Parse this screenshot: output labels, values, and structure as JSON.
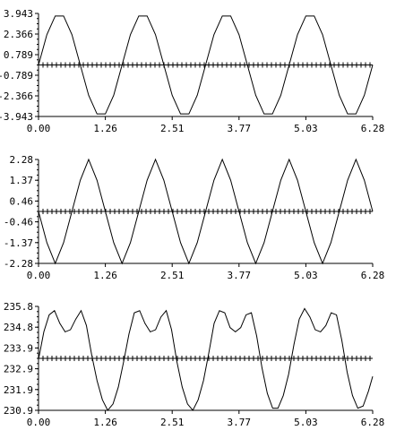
{
  "chart_data": [
    {
      "type": "line",
      "xlim": [
        0,
        6.28
      ],
      "ylim": [
        -3.943,
        3.943
      ],
      "x_ticks": [
        "0.00",
        "1.26",
        "2.51",
        "3.77",
        "5.03",
        "6.28"
      ],
      "y_ticks": [
        "3.943",
        "2.366",
        "0.789",
        "-0.789",
        "-2.366",
        "-3.943"
      ],
      "series": [
        {
          "x": [
            0,
            0.157,
            0.314,
            0.471,
            0.628,
            0.785,
            0.942,
            1.099,
            1.256,
            1.413,
            1.57,
            1.727,
            1.884,
            2.041,
            2.198,
            2.355,
            2.512,
            2.669,
            2.826,
            2.983,
            3.14,
            3.297,
            3.454,
            3.611,
            3.768,
            3.925,
            4.082,
            4.239,
            4.396,
            4.553,
            4.71,
            4.867,
            5.024,
            5.181,
            5.338,
            5.495,
            5.652,
            5.809,
            5.966,
            6.123,
            6.28
          ],
          "y": [
            0,
            2.32,
            3.75,
            3.75,
            2.32,
            0,
            -2.32,
            -3.75,
            -3.75,
            -2.32,
            0,
            2.32,
            3.75,
            3.75,
            2.32,
            0,
            -2.32,
            -3.75,
            -3.75,
            -2.32,
            0,
            2.32,
            3.75,
            3.75,
            2.32,
            0,
            -2.32,
            -3.75,
            -3.75,
            -2.32,
            0,
            2.32,
            3.75,
            3.75,
            2.32,
            0,
            -2.32,
            -3.75,
            -3.75,
            -2.32,
            0
          ]
        }
      ]
    },
    {
      "type": "line",
      "xlim": [
        0,
        6.28
      ],
      "ylim": [
        -2.28,
        2.28
      ],
      "x_ticks": [
        "0.00",
        "1.26",
        "2.51",
        "3.77",
        "5.03",
        "6.28"
      ],
      "y_ticks": [
        "2.28",
        "1.37",
        "0.46",
        "-0.46",
        "-1.37",
        "-2.28"
      ],
      "series": [
        {
          "x": [
            0,
            0.157,
            0.314,
            0.471,
            0.628,
            0.785,
            0.942,
            1.099,
            1.256,
            1.413,
            1.57,
            1.727,
            1.884,
            2.041,
            2.198,
            2.355,
            2.512,
            2.669,
            2.826,
            2.983,
            3.14,
            3.297,
            3.454,
            3.611,
            3.768,
            3.925,
            4.082,
            4.239,
            4.396,
            4.553,
            4.71,
            4.867,
            5.024,
            5.181,
            5.338,
            5.495,
            5.652,
            5.809,
            5.966,
            6.123,
            6.28
          ],
          "y": [
            0,
            -1.37,
            -2.28,
            -1.37,
            0,
            1.37,
            2.28,
            1.37,
            0,
            -1.37,
            -2.28,
            -1.37,
            0,
            1.37,
            2.28,
            1.37,
            0,
            -1.37,
            -2.28,
            -1.37,
            0,
            1.37,
            2.28,
            1.37,
            0,
            -1.37,
            -2.28,
            -1.37,
            0,
            1.37,
            2.28,
            1.37,
            0,
            -1.37,
            -2.28,
            -1.37,
            0,
            1.37,
            2.28,
            1.37,
            0
          ]
        }
      ]
    },
    {
      "type": "line",
      "xlim": [
        0,
        6.28
      ],
      "ylim": [
        230.9,
        235.8
      ],
      "x_ticks": [
        "0.00",
        "1.26",
        "2.51",
        "3.77",
        "5.03",
        "6.28"
      ],
      "y_ticks": [
        "235.8",
        "234.8",
        "233.9",
        "232.9",
        "231.9",
        "230.9"
      ],
      "series": [
        {
          "x": [
            0,
            0.1,
            0.2,
            0.3,
            0.4,
            0.5,
            0.6,
            0.7,
            0.8,
            0.9,
            1.0,
            1.1,
            1.2,
            1.3,
            1.4,
            1.5,
            1.6,
            1.7,
            1.8,
            1.9,
            2.0,
            2.1,
            2.2,
            2.3,
            2.4,
            2.5,
            2.6,
            2.7,
            2.8,
            2.9,
            3.0,
            3.1,
            3.2,
            3.3,
            3.4,
            3.5,
            3.6,
            3.7,
            3.8,
            3.9,
            4.0,
            4.1,
            4.2,
            4.3,
            4.4,
            4.5,
            4.6,
            4.7,
            4.8,
            4.9,
            5.0,
            5.1,
            5.2,
            5.3,
            5.4,
            5.5,
            5.6,
            5.7,
            5.8,
            5.9,
            6.0,
            6.1,
            6.2,
            6.28
          ],
          "y": [
            233.3,
            234.6,
            235.4,
            235.6,
            235.0,
            234.6,
            234.7,
            235.2,
            235.6,
            234.9,
            233.5,
            232.3,
            231.4,
            230.9,
            231.2,
            232.0,
            233.2,
            234.5,
            235.5,
            235.6,
            235.0,
            234.6,
            234.7,
            235.3,
            235.6,
            234.7,
            233.2,
            232.0,
            231.2,
            230.9,
            231.4,
            232.3,
            233.6,
            235.0,
            235.6,
            235.5,
            234.8,
            234.6,
            234.8,
            235.4,
            235.5,
            234.4,
            232.9,
            231.7,
            231.0,
            231.0,
            231.6,
            232.6,
            234.0,
            235.2,
            235.7,
            235.3,
            234.7,
            234.6,
            234.9,
            235.5,
            235.4,
            234.2,
            232.7,
            231.6,
            231.0,
            231.1,
            231.8,
            232.5
          ]
        }
      ]
    }
  ]
}
